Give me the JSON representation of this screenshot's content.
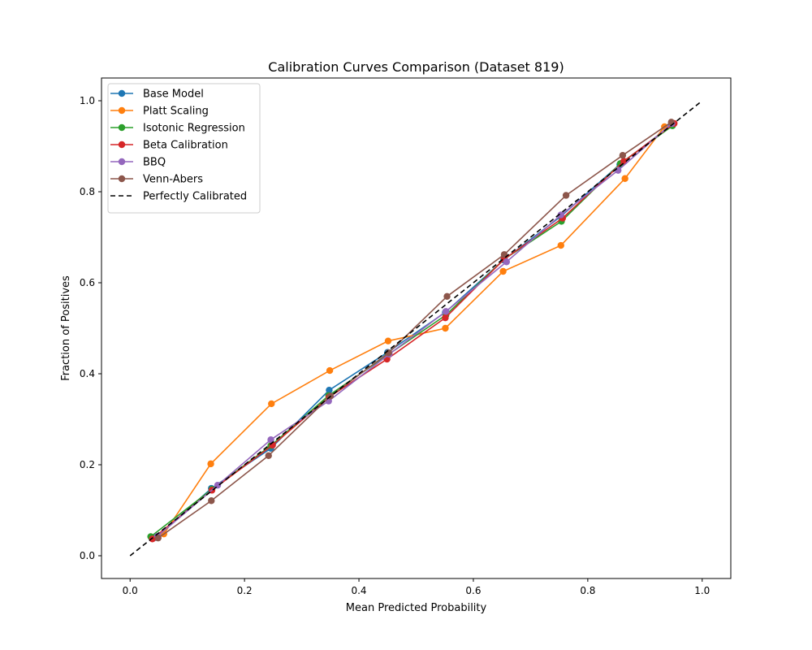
{
  "chart_data": {
    "type": "line",
    "title": "Calibration Curves Comparison (Dataset 819)",
    "xlabel": "Mean Predicted Probability",
    "ylabel": "Fraction of Positives",
    "xlim": [
      -0.05,
      1.05
    ],
    "ylim": [
      -0.05,
      1.05
    ],
    "xticks": [
      0.0,
      0.2,
      0.4,
      0.6,
      0.8,
      1.0
    ],
    "yticks": [
      0.0,
      0.2,
      0.4,
      0.6,
      0.8,
      1.0
    ],
    "xtick_labels": [
      "0.0",
      "0.2",
      "0.4",
      "0.6",
      "0.8",
      "1.0"
    ],
    "ytick_labels": [
      "0.0",
      "0.2",
      "0.4",
      "0.6",
      "0.8",
      "1.0"
    ],
    "grid": false,
    "legend_position": "upper-left",
    "series": [
      {
        "name": "Base Model",
        "color": "#1f77b4",
        "marker": "circle",
        "x": [
          0.045,
          0.142,
          0.246,
          0.348,
          0.45,
          0.551,
          0.653,
          0.753,
          0.856,
          0.946
        ],
        "y": [
          0.04,
          0.148,
          0.236,
          0.364,
          0.447,
          0.535,
          0.65,
          0.746,
          0.86,
          0.946
        ]
      },
      {
        "name": "Platt Scaling",
        "color": "#ff7f0e",
        "marker": "circle",
        "x": [
          0.059,
          0.141,
          0.247,
          0.349,
          0.451,
          0.551,
          0.652,
          0.753,
          0.865,
          0.934
        ],
        "y": [
          0.048,
          0.202,
          0.334,
          0.407,
          0.472,
          0.5,
          0.625,
          0.682,
          0.829,
          0.943
        ]
      },
      {
        "name": "Isotonic Regression",
        "color": "#2ca02c",
        "marker": "circle",
        "x": [
          0.036,
          0.143,
          0.246,
          0.347,
          0.451,
          0.552,
          0.654,
          0.754,
          0.857,
          0.948
        ],
        "y": [
          0.042,
          0.146,
          0.242,
          0.352,
          0.442,
          0.529,
          0.652,
          0.735,
          0.862,
          0.945
        ]
      },
      {
        "name": "Beta Calibration",
        "color": "#d62728",
        "marker": "circle",
        "x": [
          0.039,
          0.143,
          0.249,
          0.348,
          0.449,
          0.551,
          0.654,
          0.756,
          0.863,
          0.951
        ],
        "y": [
          0.037,
          0.144,
          0.243,
          0.349,
          0.432,
          0.523,
          0.652,
          0.742,
          0.867,
          0.95
        ]
      },
      {
        "name": "BBQ",
        "color": "#9467bd",
        "marker": "circle",
        "x": [
          0.048,
          0.153,
          0.246,
          0.347,
          0.453,
          0.552,
          0.658,
          0.753,
          0.853,
          0.947
        ],
        "y": [
          0.043,
          0.155,
          0.255,
          0.34,
          0.443,
          0.537,
          0.646,
          0.749,
          0.847,
          0.95
        ]
      },
      {
        "name": "Venn-Abers",
        "color": "#8c564b",
        "marker": "circle",
        "x": [
          0.049,
          0.142,
          0.242,
          0.35,
          0.452,
          0.554,
          0.654,
          0.762,
          0.861,
          0.946
        ],
        "y": [
          0.039,
          0.121,
          0.22,
          0.351,
          0.446,
          0.57,
          0.662,
          0.792,
          0.88,
          0.953
        ]
      },
      {
        "name": "Perfectly Calibrated",
        "color": "#000000",
        "marker": "none",
        "dashed": true,
        "x": [
          0.0,
          1.0
        ],
        "y": [
          0.0,
          1.0
        ]
      }
    ]
  }
}
